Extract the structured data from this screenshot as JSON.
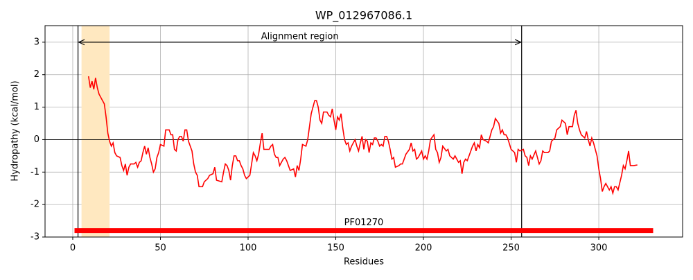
{
  "chart_data": {
    "type": "line",
    "title": "WP_012967086.1",
    "xlabel": "Residues",
    "ylabel": "Hydropathy (kcal/mol)",
    "color": "#ff0000",
    "xlim": [
      -15.8,
      347.8
    ],
    "ylim": [
      -3,
      3.51
    ],
    "xticks": [
      0,
      50,
      100,
      150,
      200,
      250,
      300
    ],
    "yticks": [
      -3,
      -2,
      -1,
      0,
      1,
      2,
      3
    ],
    "grid": true,
    "hline": 0,
    "shaded_region": {
      "x": [
        5,
        21
      ],
      "color": "#ffe8c0"
    },
    "vlines": [
      3,
      256
    ],
    "alignment": {
      "label": "Alignment region",
      "x": [
        3,
        256
      ],
      "y": 3
    },
    "domain": {
      "label": "PF01270",
      "x": [
        1,
        331
      ],
      "y": -2.8,
      "color": "#ff0000"
    },
    "x": [
      9,
      10,
      11,
      12,
      13,
      14,
      15,
      17,
      18,
      19,
      20,
      21,
      22,
      23,
      24,
      25,
      27,
      28,
      29,
      30,
      31,
      32,
      33,
      35,
      36,
      37,
      38,
      39,
      40,
      41,
      42,
      43,
      44,
      45,
      46,
      47,
      48,
      49,
      50,
      52,
      53,
      55,
      56,
      57,
      58,
      59,
      60,
      61,
      62,
      63,
      64,
      65,
      66,
      68,
      69,
      70,
      71,
      72,
      74,
      75,
      77,
      78,
      80,
      81,
      82,
      85,
      86,
      87,
      88,
      89,
      90,
      91,
      92,
      93,
      94,
      95,
      96,
      97,
      98,
      99,
      101,
      102,
      103,
      104,
      105,
      106,
      107,
      108,
      109,
      112,
      113,
      114,
      115,
      116,
      117,
      118,
      119,
      120,
      121,
      122,
      123,
      124,
      126,
      127,
      128,
      129,
      130,
      131,
      133,
      134,
      135,
      136,
      137,
      138,
      139,
      140,
      141,
      142,
      143,
      145,
      146,
      147,
      148,
      149,
      150,
      151,
      152,
      153,
      154,
      155,
      156,
      157,
      158,
      159,
      160,
      161,
      162,
      163,
      164,
      165,
      166,
      167,
      168,
      169,
      170,
      171,
      172,
      173,
      174,
      175,
      176,
      177,
      178,
      179,
      180,
      181,
      182,
      183,
      184,
      186,
      187,
      188,
      189,
      190,
      192,
      193,
      194,
      195,
      196,
      197,
      199,
      200,
      201,
      202,
      203,
      204,
      206,
      207,
      208,
      209,
      210,
      211,
      213,
      214,
      215,
      216,
      217,
      218,
      220,
      221,
      222,
      223,
      224,
      225,
      227,
      228,
      229,
      230,
      231,
      232,
      233,
      234,
      236,
      237,
      238,
      239,
      240,
      241,
      243,
      244,
      245,
      246,
      247,
      248,
      250,
      251,
      252,
      253,
      254,
      255,
      257,
      258,
      259,
      260,
      261,
      262,
      264,
      265,
      266,
      267,
      268,
      269,
      271,
      272,
      273,
      274,
      275,
      276,
      278,
      279,
      280,
      281,
      282,
      283,
      285,
      286,
      287,
      288,
      289,
      290,
      292,
      293,
      294,
      295,
      296,
      297,
      299,
      300,
      301,
      302,
      303,
      304,
      306,
      307,
      308,
      309,
      310,
      311,
      313,
      314,
      315,
      316,
      317,
      318,
      320,
      322
    ],
    "values": [
      1.95,
      1.6,
      1.8,
      1.55,
      1.9,
      1.6,
      1.4,
      1.2,
      1.1,
      0.7,
      0.2,
      -0.05,
      -0.2,
      -0.1,
      -0.4,
      -0.5,
      -0.55,
      -0.8,
      -0.95,
      -0.75,
      -1.1,
      -0.85,
      -0.75,
      -0.75,
      -0.7,
      -0.85,
      -0.7,
      -0.65,
      -0.4,
      -0.2,
      -0.45,
      -0.25,
      -0.55,
      -0.75,
      -1.0,
      -0.9,
      -0.55,
      -0.4,
      -0.15,
      -0.2,
      0.3,
      0.3,
      0.15,
      0.15,
      -0.3,
      -0.35,
      0,
      0.1,
      0.1,
      -0.05,
      0.3,
      0.3,
      -0.05,
      -0.35,
      -0.75,
      -1.0,
      -1.1,
      -1.45,
      -1.45,
      -1.3,
      -1.2,
      -1.1,
      -1.05,
      -0.85,
      -1.25,
      -1.3,
      -1.0,
      -0.75,
      -0.8,
      -0.95,
      -1.25,
      -0.8,
      -0.5,
      -0.5,
      -0.65,
      -0.65,
      -0.8,
      -0.9,
      -1.1,
      -1.2,
      -1.1,
      -0.75,
      -0.4,
      -0.5,
      -0.65,
      -0.45,
      -0.1,
      0.2,
      -0.3,
      -0.3,
      -0.2,
      -0.15,
      -0.45,
      -0.55,
      -0.55,
      -0.8,
      -0.7,
      -0.6,
      -0.55,
      -0.65,
      -0.8,
      -0.95,
      -0.9,
      -1.15,
      -0.8,
      -0.95,
      -0.6,
      -0.15,
      -0.2,
      0,
      0.4,
      0.8,
      1.0,
      1.2,
      1.2,
      1.0,
      0.6,
      0.5,
      0.85,
      0.85,
      0.75,
      0.7,
      0.95,
      0.6,
      0.3,
      0.7,
      0.6,
      0.8,
      0.35,
      0,
      -0.15,
      -0.1,
      -0.35,
      -0.2,
      -0.1,
      0,
      -0.2,
      -0.35,
      -0.1,
      0.1,
      -0.3,
      0,
      -0.05,
      -0.4,
      -0.1,
      -0.15,
      0.05,
      0.05,
      -0.05,
      -0.2,
      -0.15,
      -0.2,
      0.1,
      0.1,
      -0.05,
      -0.3,
      -0.6,
      -0.55,
      -0.85,
      -0.8,
      -0.75,
      -0.75,
      -0.6,
      -0.45,
      -0.3,
      -0.1,
      -0.35,
      -0.3,
      -0.6,
      -0.55,
      -0.35,
      -0.6,
      -0.5,
      -0.6,
      -0.35,
      0,
      0.15,
      -0.3,
      -0.4,
      -0.7,
      -0.55,
      -0.2,
      -0.35,
      -0.3,
      -0.5,
      -0.55,
      -0.6,
      -0.5,
      -0.7,
      -0.65,
      -1.05,
      -0.7,
      -0.6,
      -0.65,
      -0.35,
      -0.2,
      -0.1,
      -0.35,
      -0.15,
      -0.25,
      0.15,
      0,
      -0.05,
      -0.1,
      0.1,
      0.3,
      0.4,
      0.65,
      0.5,
      0.2,
      0.3,
      0.15,
      0.15,
      0.05,
      -0.3,
      -0.35,
      -0.4,
      -0.7,
      -0.3,
      -0.35,
      -0.3,
      -0.5,
      -0.55,
      -0.8,
      -0.5,
      -0.6,
      -0.35,
      -0.55,
      -0.75,
      -0.65,
      -0.35,
      -0.4,
      -0.4,
      -0.35,
      -0.05,
      0,
      0.05,
      0.3,
      0.4,
      0.6,
      0.55,
      0.5,
      0.15,
      0.4,
      0.4,
      0.75,
      0.9,
      0.5,
      0.3,
      0.15,
      0.05,
      0.25,
      0,
      -0.2,
      0.05,
      -0.1,
      -0.5,
      -0.9,
      -1.2,
      -1.6,
      -1.45,
      -1.35,
      -1.55,
      -1.45,
      -1.65,
      -1.45,
      -1.45,
      -1.55,
      -1.1,
      -0.8,
      -0.9,
      -0.65,
      -0.35,
      -0.8,
      -0.8,
      -0.78
    ]
  }
}
